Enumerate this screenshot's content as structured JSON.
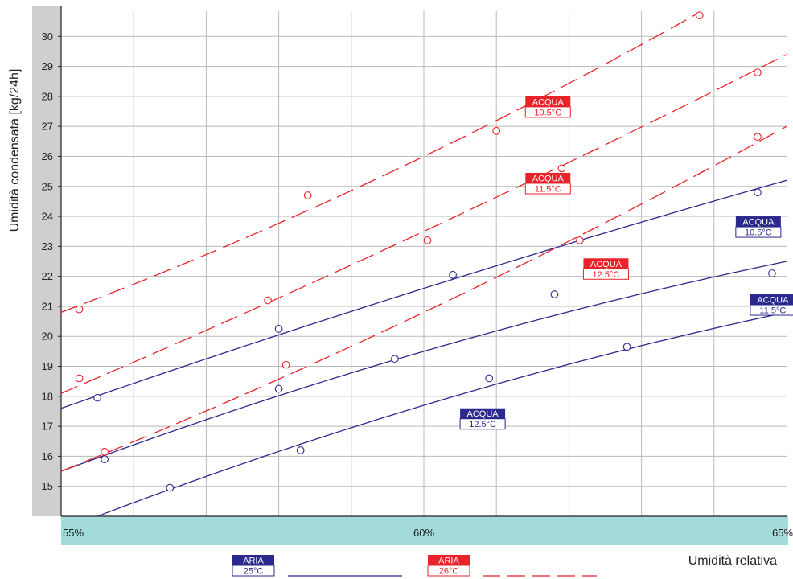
{
  "chart_data": {
    "type": "scatter",
    "title": "",
    "ylabel": "Umidità condensata [kg/24h]",
    "xlabel": "Umidità relativa",
    "xlim": [
      55,
      65
    ],
    "ylim": [
      14,
      31
    ],
    "x_ticks": [
      {
        "value": 55,
        "label": "55%"
      },
      {
        "value": 60,
        "label": "60%"
      },
      {
        "value": 65,
        "label": "65%"
      }
    ],
    "y_ticks": [
      15,
      16,
      17,
      18,
      19,
      20,
      21,
      22,
      23,
      24,
      25,
      26,
      27,
      28,
      29,
      30
    ],
    "x_gridlines": [
      56,
      57,
      58,
      59,
      60,
      61,
      62,
      63,
      64
    ],
    "grid": true,
    "legend": {
      "placement": "bottom",
      "items": [
        {
          "line1": "ARIA",
          "line2": "25°C",
          "style": "solid",
          "color": "#2b2a8c"
        },
        {
          "line1": "ARIA",
          "line2": "26°C",
          "style": "dashed",
          "color": "#e8232a"
        }
      ]
    },
    "series": [
      {
        "group": "ARIA 25°C",
        "label_line1": "ACQUA",
        "label_line2": "10.5°C",
        "color": "#2b2a8c",
        "style": "solid",
        "fit": [
          [
            55,
            17.6
          ],
          [
            60,
            21.6
          ],
          [
            65,
            25.2
          ]
        ],
        "points": [
          [
            55.5,
            17.95
          ],
          [
            58,
            20.25
          ],
          [
            60.4,
            22.05
          ],
          [
            64.6,
            24.8
          ]
        ],
        "label_at": [
          64.3,
          24.0
        ]
      },
      {
        "group": "ARIA 25°C",
        "label_line1": "ACQUA",
        "label_line2": "11.5°C",
        "color": "#2b2a8c",
        "style": "solid",
        "fit": [
          [
            55,
            15.5
          ],
          [
            60,
            19.5
          ],
          [
            65,
            22.5
          ]
        ],
        "points": [
          [
            55.6,
            15.9
          ],
          [
            58,
            18.25
          ],
          [
            59.6,
            19.25
          ],
          [
            61.8,
            21.4
          ],
          [
            64.8,
            22.1
          ]
        ],
        "label_at": [
          64.5,
          21.4
        ]
      },
      {
        "group": "ARIA 25°C",
        "label_line1": "ACQUA",
        "label_line2": "12.5°C",
        "color": "#2b2a8c",
        "style": "solid",
        "fit": [
          [
            55.5,
            14
          ],
          [
            60,
            17.7
          ],
          [
            65,
            20.8
          ]
        ],
        "points": [
          [
            56.5,
            14.95
          ],
          [
            58.3,
            16.2
          ],
          [
            60.9,
            18.6
          ],
          [
            62.8,
            19.65
          ],
          [
            64.8,
            20.9
          ]
        ],
        "label_at": [
          60.5,
          17.6
        ]
      },
      {
        "group": "ARIA 26°C",
        "label_line1": "ACQUA",
        "label_line2": "10.5°C",
        "color": "#e8232a",
        "style": "dashed",
        "fit": [
          [
            55,
            20.8
          ],
          [
            60,
            26
          ],
          [
            63.8,
            30.8
          ]
        ],
        "points": [
          [
            55.25,
            20.9
          ],
          [
            58.4,
            24.7
          ],
          [
            61,
            26.85
          ],
          [
            63.8,
            30.7
          ],
          [
            64.6,
            28.8
          ]
        ],
        "label_at": [
          61.4,
          28.0
        ]
      },
      {
        "group": "ARIA 26°C",
        "label_line1": "ACQUA",
        "label_line2": "11.5°C",
        "color": "#e8232a",
        "style": "dashed",
        "fit": [
          [
            55,
            18.1
          ],
          [
            60,
            23.5
          ],
          [
            65,
            29.4
          ]
        ],
        "points": [
          [
            55.25,
            18.6
          ],
          [
            57.85,
            21.2
          ],
          [
            60.05,
            23.2
          ],
          [
            61.9,
            25.6
          ],
          [
            64.6,
            26.65
          ]
        ],
        "label_at": [
          61.4,
          25.45
        ]
      },
      {
        "group": "ARIA 26°C",
        "label_line1": "ACQUA",
        "label_line2": "12.5°C",
        "color": "#e8232a",
        "style": "dashed",
        "fit": [
          [
            55,
            15.5
          ],
          [
            60,
            20.8
          ],
          [
            65,
            27
          ]
        ],
        "points": [
          [
            55.6,
            16.15
          ],
          [
            58.1,
            19.05
          ],
          [
            62.15,
            23.2
          ]
        ],
        "label_at": [
          62.2,
          22.6
        ]
      }
    ]
  },
  "colors": {
    "left_band": "#cfcfcf",
    "bottom_band": "#a3dada",
    "grid": "#b9b9b9",
    "axis": "#222222",
    "blue": "#2b2a8c",
    "red": "#e8232a"
  }
}
